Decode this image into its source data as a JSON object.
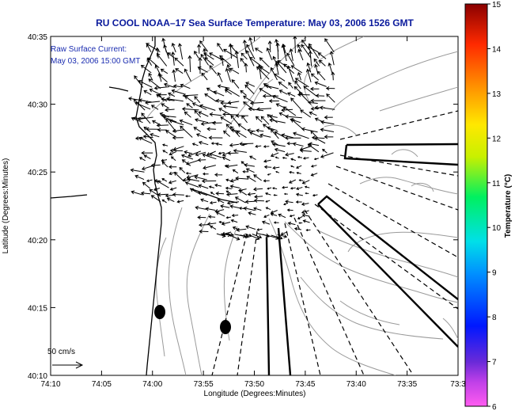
{
  "title": "RU COOL  NOAA–17  Sea Surface Temperature:  May 03, 2006 1526 GMT",
  "annotation": {
    "line1": "Raw Surface Current:",
    "line2": "May 03, 2006 15:00 GMT"
  },
  "axes": {
    "xlabel": "Longitude (Degrees:Minutes)",
    "ylabel": "Latitude (Degrees:Minutes)",
    "xticks": [
      "74:10",
      "74:05",
      "74:00",
      "73:55",
      "73:50",
      "73:45",
      "73:40",
      "73:35",
      "73:3"
    ],
    "yticks": [
      "40:10",
      "40:15",
      "40:20",
      "40:25",
      "40:30",
      "40:35"
    ]
  },
  "scale_label": "50 cm/s",
  "colorbar": {
    "label": "Temperature (°C)",
    "ticks": [
      "6",
      "7",
      "8",
      "9",
      "10",
      "11",
      "12",
      "13",
      "14",
      "15"
    ]
  },
  "colors": {
    "title": "#0a1a9c",
    "annotation": "#1a2cb0",
    "land": "#ffffff",
    "contour": "#9a9a9a",
    "vectors": "#000000"
  }
}
